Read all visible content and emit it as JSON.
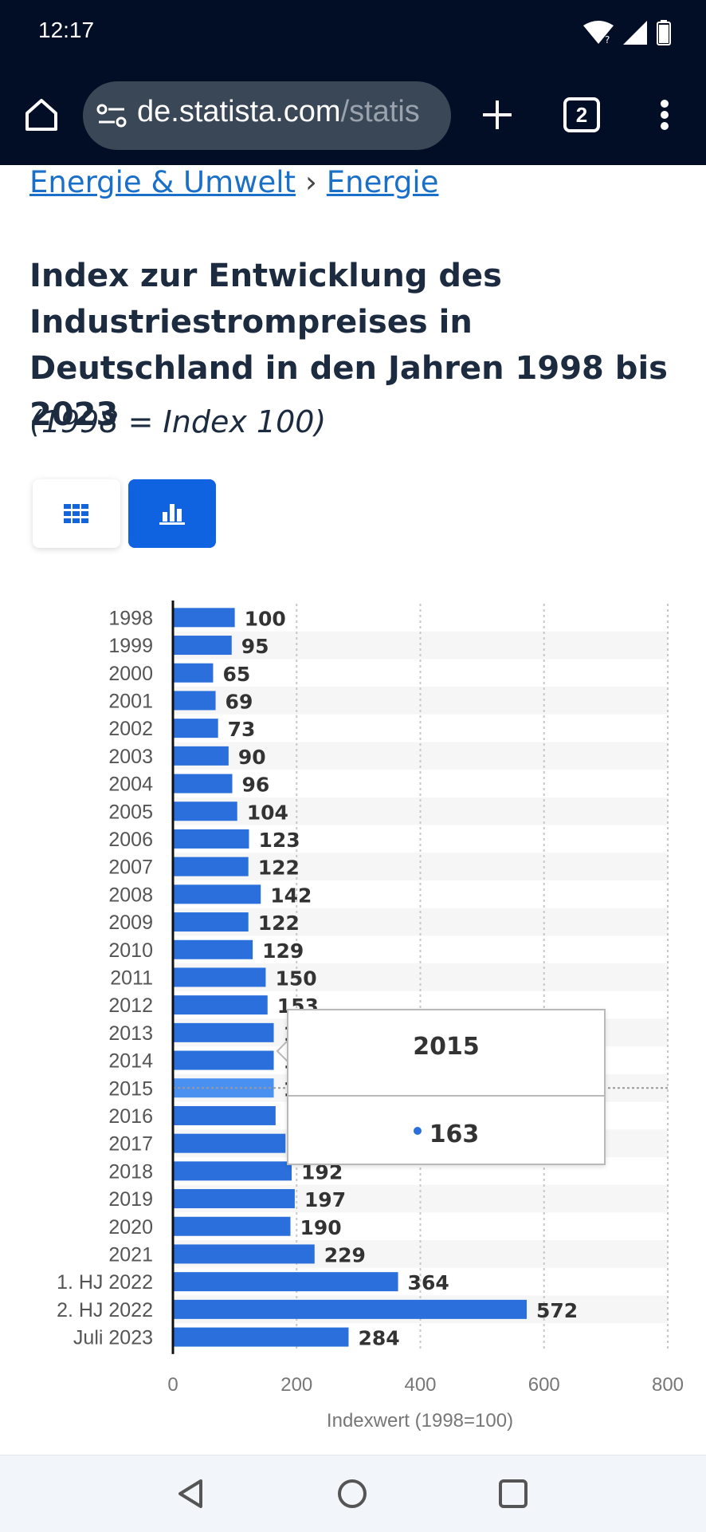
{
  "status_bar": {
    "time": "12:17"
  },
  "browser": {
    "url_host": "de.statista.com",
    "url_path": "/statis",
    "tab_count": "2"
  },
  "breadcrumb": {
    "items": [
      "Energie & Umwelt",
      "Energie"
    ],
    "separator": "›"
  },
  "page": {
    "title": "Index zur Entwicklung des Industriestrompreises in Deutschland in den Jahren 1998 bis 2023",
    "subtitle": "(1998 = Index 100)"
  },
  "view_toggle": {
    "active": "chart"
  },
  "tooltip": {
    "category": "2015",
    "value": "163"
  },
  "chart_data": {
    "type": "bar",
    "orientation": "horizontal",
    "categories": [
      "1998",
      "1999",
      "2000",
      "2001",
      "2002",
      "2003",
      "2004",
      "2005",
      "2006",
      "2007",
      "2008",
      "2009",
      "2010",
      "2011",
      "2012",
      "2013",
      "2014",
      "2015",
      "2016",
      "2017",
      "2018",
      "2019",
      "2020",
      "2021",
      "1. HJ 2022",
      "2. HJ 2022",
      "Juli 2023"
    ],
    "values": [
      100,
      95,
      65,
      69,
      73,
      90,
      96,
      104,
      123,
      122,
      142,
      122,
      129,
      150,
      153,
      163,
      163,
      163,
      166,
      182,
      192,
      197,
      190,
      229,
      364,
      572,
      284
    ],
    "xlabel": "Indexwert (1998=100)",
    "xlim": [
      0,
      800
    ],
    "xticks": [
      0,
      200,
      400,
      600,
      800
    ],
    "highlighted_category": "2015",
    "colors": {
      "bar": "#2a6fdb",
      "bar_highlight": "#4a90f0"
    },
    "grid": true
  }
}
